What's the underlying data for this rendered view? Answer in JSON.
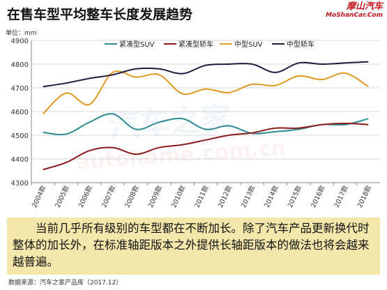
{
  "header": {
    "title": "在售车型平均整车长度发展趋势",
    "logo_line1": "摩山汽车",
    "logo_line2": "MoShanCar.Com"
  },
  "watermark": {
    "line1": "汽车之家",
    "line2": "autohome.com.cn"
  },
  "chart_data": {
    "type": "line",
    "ylabel": "单位：mm",
    "ylim": [
      4300,
      4900
    ],
    "yticks": [
      4300,
      4400,
      4500,
      4600,
      4700,
      4800,
      4900
    ],
    "x": [
      "2004款",
      "2005款",
      "2006款",
      "2007款",
      "2008款",
      "2009款",
      "2010款",
      "2011款",
      "2012款",
      "2013款",
      "2014款",
      "2015款",
      "2016款",
      "2017款",
      "2018款"
    ],
    "grid": true,
    "legend_position": "top",
    "series": [
      {
        "name": "紧凑型SUV",
        "color": "#2e8b91",
        "values": [
          4512,
          4505,
          4555,
          4590,
          4525,
          4555,
          4570,
          4525,
          4540,
          4508,
          4515,
          4525,
          4545,
          4545,
          4570
        ]
      },
      {
        "name": "紧凑型轿车",
        "color": "#8b1a1a",
        "values": [
          4355,
          4385,
          4435,
          4448,
          4420,
          4448,
          4460,
          4480,
          4500,
          4510,
          4530,
          4530,
          4545,
          4550,
          4545
        ]
      },
      {
        "name": "中型SUV",
        "color": "#e09a22",
        "values": [
          4590,
          4678,
          4630,
          4765,
          4745,
          4755,
          4675,
          4695,
          4680,
          4715,
          4710,
          4750,
          4735,
          4762,
          4705
        ]
      },
      {
        "name": "中型轿车",
        "color": "#1c1c3c",
        "values": [
          4705,
          4720,
          4740,
          4755,
          4780,
          4780,
          4760,
          4795,
          4800,
          4800,
          4765,
          4805,
          4800,
          4805,
          4810
        ]
      }
    ]
  },
  "caption": "当前几乎所有级别的车型都在不断加长。除了汽车产品更新换代时整体的加长外，在标准轴距版本之外提供长轴距版本的做法也将会越来越普遍。",
  "source": "数据来源：汽车之家产品库（2017.12）"
}
